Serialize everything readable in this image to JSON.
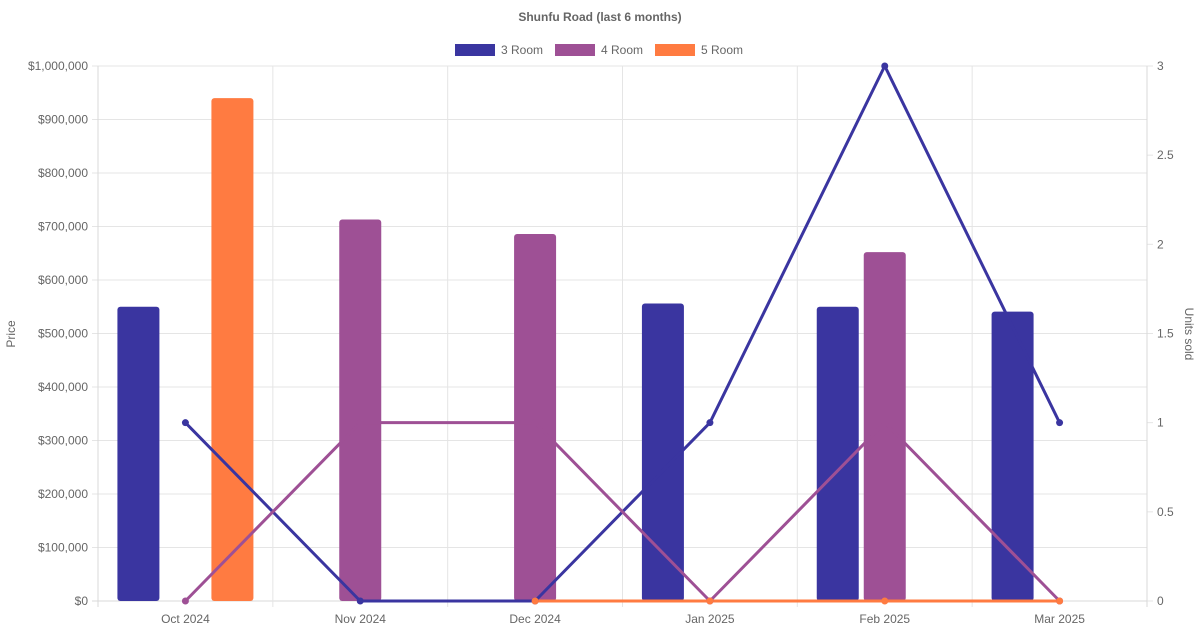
{
  "chart_data": {
    "type": "bar",
    "title": "Shunfu Road (last 6 months)",
    "categories": [
      "Oct 2024",
      "Nov 2024",
      "Dec 2024",
      "Jan 2025",
      "Feb 2025",
      "Mar 2025"
    ],
    "y_left": {
      "label": "Price",
      "range": [
        0,
        1000000
      ],
      "ticks": [
        "$0",
        "$100,000",
        "$200,000",
        "$300,000",
        "$400,000",
        "$500,000",
        "$600,000",
        "$700,000",
        "$800,000",
        "$900,000",
        "$1,000,000"
      ]
    },
    "y_right": {
      "label": "Units sold",
      "range": [
        0,
        3
      ],
      "ticks": [
        "0",
        "0.5",
        "1",
        "1.5",
        "2",
        "2.5",
        "3"
      ]
    },
    "legend_position": "top-center",
    "grid": true,
    "series": [
      {
        "name": "3 Room",
        "color": "#3a35a0",
        "price": [
          550000,
          null,
          null,
          556000,
          550000,
          541000
        ],
        "units_sold": [
          1,
          0,
          0,
          1,
          3,
          1
        ]
      },
      {
        "name": "4 Room",
        "color": "#9e5095",
        "price": [
          null,
          713000,
          686000,
          null,
          652000,
          null
        ],
        "units_sold": [
          0,
          1,
          1,
          0,
          1,
          0
        ]
      },
      {
        "name": "5 Room",
        "color": "#ff7b41",
        "price": [
          940000,
          null,
          null,
          null,
          null,
          null
        ],
        "units_sold": [
          null,
          null,
          0,
          0,
          0,
          0
        ]
      }
    ]
  }
}
